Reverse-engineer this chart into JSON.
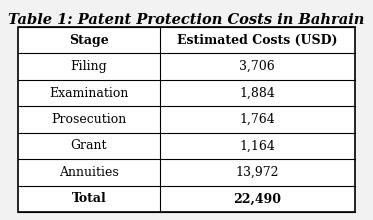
{
  "title": "Table 1: Patent Protection Costs in Bahrain",
  "col_headers": [
    "Stage",
    "Estimated Costs (USD)"
  ],
  "rows": [
    [
      "Filing",
      "3,706"
    ],
    [
      "Examination",
      "1,884"
    ],
    [
      "Prosecution",
      "1,764"
    ],
    [
      "Grant",
      "1,164"
    ],
    [
      "Annuities",
      "13,972"
    ],
    [
      "Total",
      "22,490"
    ]
  ],
  "bg_color": "#f2f2f2",
  "table_bg": "#ffffff",
  "table_edge_color": "#000000",
  "title_fontsize": 10.5,
  "header_fontsize": 9.0,
  "cell_fontsize": 9.0,
  "col_split": 0.42
}
